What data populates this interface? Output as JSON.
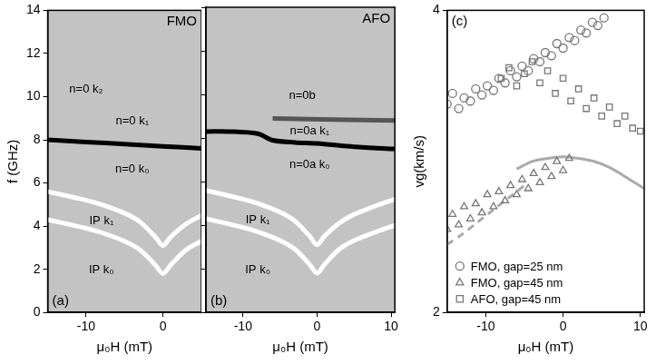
{
  "chart_data": [
    {
      "type": "line",
      "title": "(a)",
      "subtitle": "FMO",
      "xlabel": "μ₀H (mT)",
      "ylabel": "f (GHz)",
      "xlim": [
        -15,
        5
      ],
      "xticks": [
        -10,
        0
      ],
      "ylim": [
        0,
        14
      ],
      "yticks": [
        0,
        2,
        4,
        6,
        8,
        10,
        12,
        14
      ],
      "grid": false,
      "series": [
        {
          "x": [
            -15,
            -10,
            -5,
            0,
            5
          ],
          "values": [
            8.0,
            7.9,
            7.8,
            7.7,
            7.6
          ],
          "color": "#000000",
          "line_style": "solid",
          "marker": "none"
        },
        {
          "x": [
            -15,
            -10,
            -8,
            -5,
            -3,
            -1,
            0,
            1,
            3,
            5
          ],
          "values": [
            5.6,
            5.2,
            5.0,
            4.6,
            4.2,
            3.5,
            3.1,
            3.5,
            4.1,
            4.5
          ],
          "color": "#ffffff",
          "line_style": "solid",
          "marker": "none"
        },
        {
          "x": [
            -15,
            -10,
            -8,
            -5,
            -3,
            -1,
            0,
            1,
            3,
            5
          ],
          "values": [
            4.3,
            3.9,
            3.7,
            3.3,
            2.9,
            2.2,
            1.8,
            2.2,
            2.9,
            3.3
          ],
          "color": "#ffffff",
          "line_style": "solid",
          "marker": "none"
        }
      ],
      "annotations": [
        {
          "text": "n=0 k₂",
          "x": -10,
          "y": 10.4
        },
        {
          "text": "n=0 k₁",
          "x": -4,
          "y": 8.9
        },
        {
          "text": "n=0 k₀",
          "x": -4,
          "y": 6.7
        },
        {
          "text": "IP k₁",
          "x": -8,
          "y": 4.3
        },
        {
          "text": "IP k₀",
          "x": -8,
          "y": 2.0
        }
      ]
    },
    {
      "type": "line",
      "title": "(b)",
      "subtitle": "AFO",
      "xlabel": "μ₀H (mT)",
      "xlim": [
        -15,
        10.5
      ],
      "xticks": [
        -10,
        0,
        10
      ],
      "ylim": [
        0,
        14
      ],
      "yticks": [
        0,
        2,
        4,
        6,
        8,
        10,
        12,
        14
      ],
      "grid": false,
      "tick_labels": "x",
      "series": [
        {
          "x": [
            -15,
            -12,
            -8,
            -6,
            -3,
            0,
            5,
            10.5
          ],
          "values": [
            8.3,
            8.3,
            8.2,
            7.9,
            7.8,
            7.75,
            7.6,
            7.5
          ],
          "color": "#000000",
          "line_style": "solid",
          "marker": "none"
        },
        {
          "x": [
            -6,
            10.5
          ],
          "values": [
            8.9,
            8.8
          ],
          "color": "#555555",
          "line_style": "solid",
          "marker": "none"
        },
        {
          "x": [
            -15,
            -10,
            -8,
            -5,
            -3,
            -1,
            0,
            1,
            3,
            5,
            8,
            10.5
          ],
          "values": [
            5.6,
            5.2,
            5.0,
            4.6,
            4.2,
            3.5,
            3.1,
            3.5,
            4.1,
            4.5,
            4.9,
            5.2
          ],
          "color": "#ffffff",
          "line_style": "solid",
          "marker": "none"
        },
        {
          "x": [
            -15,
            -10,
            -8,
            -5,
            -3,
            -1,
            0,
            1,
            3,
            5,
            8,
            10.5
          ],
          "values": [
            4.3,
            3.9,
            3.7,
            3.3,
            2.9,
            2.2,
            1.8,
            2.2,
            2.9,
            3.3,
            3.7,
            4.0
          ],
          "color": "#ffffff",
          "line_style": "solid",
          "marker": "none"
        }
      ],
      "annotations": [
        {
          "text": "n=0b",
          "x": -2,
          "y": 10.0
        },
        {
          "text": "n=0a k₁",
          "x": -1,
          "y": 8.35
        },
        {
          "text": "n=0a k₀",
          "x": -1,
          "y": 6.8
        },
        {
          "text": "IP k₁",
          "x": -8,
          "y": 4.3
        },
        {
          "text": "IP k₀",
          "x": -8,
          "y": 2.0
        }
      ]
    },
    {
      "type": "scatter",
      "title": "(c)",
      "xlabel": "μ₀H (mT)",
      "ylabel": "vg(km/s)",
      "xlim": [
        -15,
        10.5
      ],
      "xticks": [
        -10,
        0,
        10
      ],
      "ylim": [
        2,
        4
      ],
      "yticks": [
        2,
        4
      ],
      "grid": false,
      "legend": "lower left",
      "series": [
        {
          "name": "FMO, gap=25 nm",
          "marker": "circle",
          "color": "#777777",
          "x": [
            -15,
            -14.3,
            -13.5,
            -12.8,
            -12,
            -11.3,
            -10.5,
            -9.8,
            -9,
            -8.3,
            -7.5,
            -6.8,
            -6,
            -5.3,
            -4.5,
            -3.8,
            -3,
            -2.3,
            -1.5,
            -0.8,
            0,
            0.8,
            1.5,
            2.3,
            3,
            3.8,
            4.5,
            5.3
          ],
          "values": [
            3.38,
            3.45,
            3.35,
            3.42,
            3.4,
            3.48,
            3.44,
            3.5,
            3.47,
            3.55,
            3.52,
            3.6,
            3.56,
            3.63,
            3.6,
            3.68,
            3.66,
            3.72,
            3.7,
            3.78,
            3.75,
            3.82,
            3.8,
            3.87,
            3.85,
            3.92,
            3.9,
            3.95
          ]
        },
        {
          "name": "FMO, gap=45 nm",
          "marker": "triangle",
          "color": "#777777",
          "x": [
            -15,
            -14.3,
            -13.5,
            -12.8,
            -12,
            -11.3,
            -10.5,
            -9.8,
            -9,
            -8.3,
            -7.5,
            -6.8,
            -6,
            -5.3,
            -4.5,
            -3.8,
            -3,
            -2.3,
            -1.5,
            -0.8,
            0,
            0.8
          ],
          "values": [
            2.55,
            2.65,
            2.58,
            2.7,
            2.62,
            2.72,
            2.66,
            2.78,
            2.7,
            2.8,
            2.74,
            2.84,
            2.78,
            2.88,
            2.82,
            2.92,
            2.86,
            2.96,
            2.9,
            3.0,
            2.94,
            3.02
          ]
        },
        {
          "name": "AFO, gap=45 nm",
          "marker": "square",
          "color": "#777777",
          "x": [
            -8,
            -7,
            -6,
            -5,
            -4,
            -3,
            -2,
            -1,
            0,
            1,
            2,
            3,
            4,
            5,
            6,
            7,
            8,
            9,
            10
          ],
          "values": [
            3.55,
            3.62,
            3.5,
            3.58,
            3.66,
            3.52,
            3.6,
            3.45,
            3.55,
            3.4,
            3.48,
            3.35,
            3.42,
            3.3,
            3.36,
            3.25,
            3.3,
            3.22,
            3.2
          ]
        },
        {
          "marker": "none",
          "line_style": "solid",
          "color": "#aaaaaa",
          "x": [
            -6,
            -4,
            -2,
            0,
            2,
            4,
            6,
            8,
            10.5
          ],
          "values": [
            2.95,
            3.0,
            3.02,
            3.03,
            3.02,
            3.0,
            2.96,
            2.9,
            2.82
          ]
        },
        {
          "marker": "none",
          "line_style": "dashed",
          "color": "#aaaaaa",
          "x": [
            -15,
            -13,
            -11,
            -9,
            -7,
            -5
          ],
          "values": [
            2.45,
            2.52,
            2.6,
            2.68,
            2.76,
            2.84
          ]
        }
      ]
    }
  ]
}
